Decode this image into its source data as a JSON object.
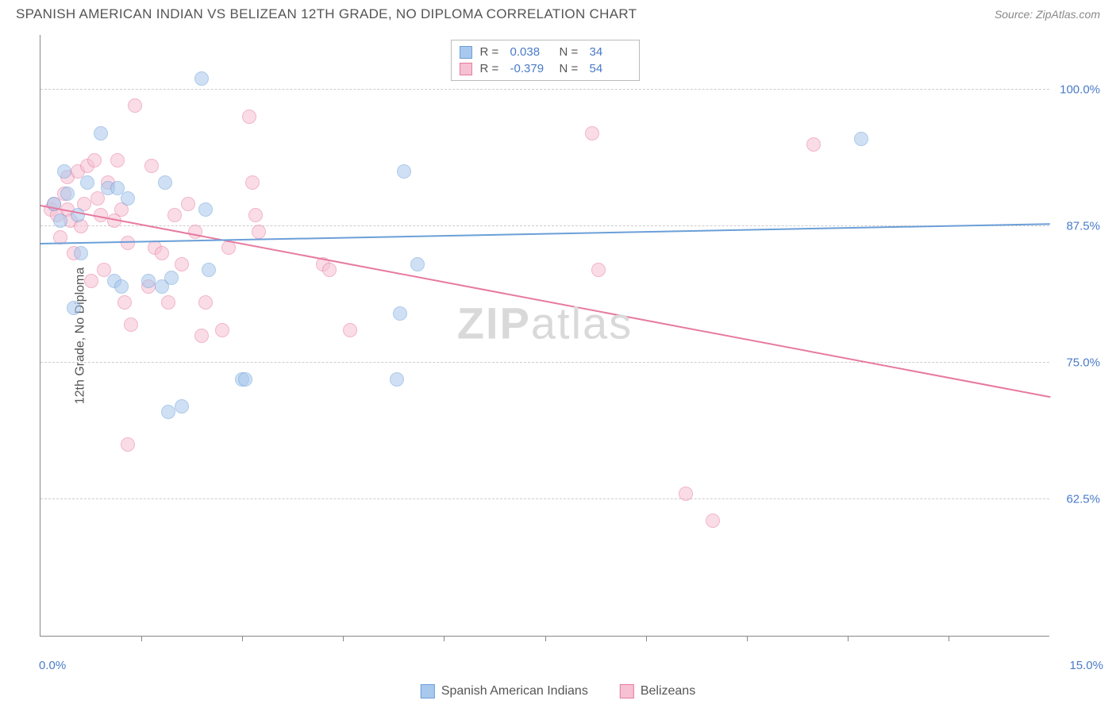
{
  "header": {
    "title": "SPANISH AMERICAN INDIAN VS BELIZEAN 12TH GRADE, NO DIPLOMA CORRELATION CHART",
    "source": "Source: ZipAtlas.com"
  },
  "watermark": {
    "bold": "ZIP",
    "light": "atlas"
  },
  "chart": {
    "type": "scatter",
    "y_axis_label": "12th Grade, No Diploma",
    "x_range": {
      "min": 0.0,
      "max": 15.0,
      "min_label": "0.0%",
      "max_label": "15.0%"
    },
    "y_range": {
      "min": 50.0,
      "max": 105.0
    },
    "y_gridlines": [
      62.5,
      75.0,
      87.5,
      100.0
    ],
    "y_tick_labels": [
      "62.5%",
      "75.0%",
      "87.5%",
      "100.0%"
    ],
    "x_ticks": [
      1.5,
      3.0,
      4.5,
      6.0,
      7.5,
      9.0,
      10.5,
      12.0,
      13.5
    ],
    "background_color": "#ffffff",
    "grid_color": "#cccccc",
    "axis_color": "#888888",
    "label_color": "#555555",
    "tick_label_color": "#4a7bc8",
    "marker_radius": 9,
    "marker_opacity": 0.55,
    "series": [
      {
        "name": "Spanish American Indians",
        "fill": "#a8c8ed",
        "stroke": "#6b9fd8",
        "r_value": "0.038",
        "n_value": "34",
        "trendline": {
          "y_at_xmin": 86.0,
          "y_at_xmax": 87.8
        },
        "points": [
          [
            0.2,
            89.5
          ],
          [
            0.3,
            88.0
          ],
          [
            0.35,
            92.5
          ],
          [
            0.4,
            90.5
          ],
          [
            0.5,
            80.0
          ],
          [
            0.55,
            88.5
          ],
          [
            0.6,
            85.0
          ],
          [
            0.7,
            91.5
          ],
          [
            0.9,
            96.0
          ],
          [
            1.0,
            91.0
          ],
          [
            1.1,
            82.5
          ],
          [
            1.15,
            91.0
          ],
          [
            1.2,
            82.0
          ],
          [
            1.3,
            90.0
          ],
          [
            1.6,
            82.5
          ],
          [
            1.8,
            82.0
          ],
          [
            1.85,
            91.5
          ],
          [
            1.9,
            70.5
          ],
          [
            1.95,
            82.8
          ],
          [
            2.1,
            71.0
          ],
          [
            2.4,
            101.0
          ],
          [
            2.45,
            89.0
          ],
          [
            2.5,
            83.5
          ],
          [
            3.0,
            73.5
          ],
          [
            3.05,
            73.5
          ],
          [
            5.3,
            73.5
          ],
          [
            5.4,
            92.5
          ],
          [
            5.35,
            79.5
          ],
          [
            5.6,
            84.0
          ],
          [
            12.2,
            95.5
          ]
        ]
      },
      {
        "name": "Belizeans",
        "fill": "#f6c1d2",
        "stroke": "#e77aa0",
        "r_value": "-0.379",
        "n_value": "54",
        "trendline": {
          "y_at_xmin": 89.5,
          "y_at_xmax": 72.0
        },
        "points": [
          [
            0.15,
            89.0
          ],
          [
            0.2,
            89.5
          ],
          [
            0.25,
            88.5
          ],
          [
            0.3,
            86.5
          ],
          [
            0.35,
            90.5
          ],
          [
            0.4,
            89.0
          ],
          [
            0.4,
            92.0
          ],
          [
            0.45,
            88.0
          ],
          [
            0.5,
            85.0
          ],
          [
            0.55,
            92.5
          ],
          [
            0.6,
            87.5
          ],
          [
            0.65,
            89.5
          ],
          [
            0.7,
            93.0
          ],
          [
            0.75,
            82.5
          ],
          [
            0.8,
            93.5
          ],
          [
            0.85,
            90.0
          ],
          [
            0.9,
            88.5
          ],
          [
            0.95,
            83.5
          ],
          [
            1.0,
            91.5
          ],
          [
            1.1,
            88.0
          ],
          [
            1.15,
            93.5
          ],
          [
            1.2,
            89.0
          ],
          [
            1.25,
            80.5
          ],
          [
            1.3,
            86.0
          ],
          [
            1.3,
            67.5
          ],
          [
            1.35,
            78.5
          ],
          [
            1.4,
            98.5
          ],
          [
            1.6,
            82.0
          ],
          [
            1.65,
            93.0
          ],
          [
            1.7,
            85.5
          ],
          [
            1.8,
            85.0
          ],
          [
            1.9,
            80.5
          ],
          [
            2.0,
            88.5
          ],
          [
            2.1,
            84.0
          ],
          [
            2.2,
            89.5
          ],
          [
            2.3,
            87.0
          ],
          [
            2.4,
            77.5
          ],
          [
            2.45,
            80.5
          ],
          [
            2.7,
            78.0
          ],
          [
            2.8,
            85.5
          ],
          [
            3.1,
            97.5
          ],
          [
            3.15,
            91.5
          ],
          [
            3.2,
            88.5
          ],
          [
            3.25,
            87.0
          ],
          [
            4.2,
            84.0
          ],
          [
            4.3,
            83.5
          ],
          [
            4.6,
            78.0
          ],
          [
            8.2,
            96.0
          ],
          [
            8.3,
            83.5
          ],
          [
            9.6,
            63.0
          ],
          [
            10.0,
            60.5
          ],
          [
            11.5,
            95.0
          ]
        ]
      }
    ]
  },
  "legend_top": {
    "r_label": "R =",
    "n_label": "N ="
  },
  "legend_bottom": {
    "items": [
      {
        "label": "Spanish American Indians",
        "fill": "#a8c8ed",
        "stroke": "#6b9fd8"
      },
      {
        "label": "Belizeans",
        "fill": "#f6c1d2",
        "stroke": "#e77aa0"
      }
    ]
  }
}
